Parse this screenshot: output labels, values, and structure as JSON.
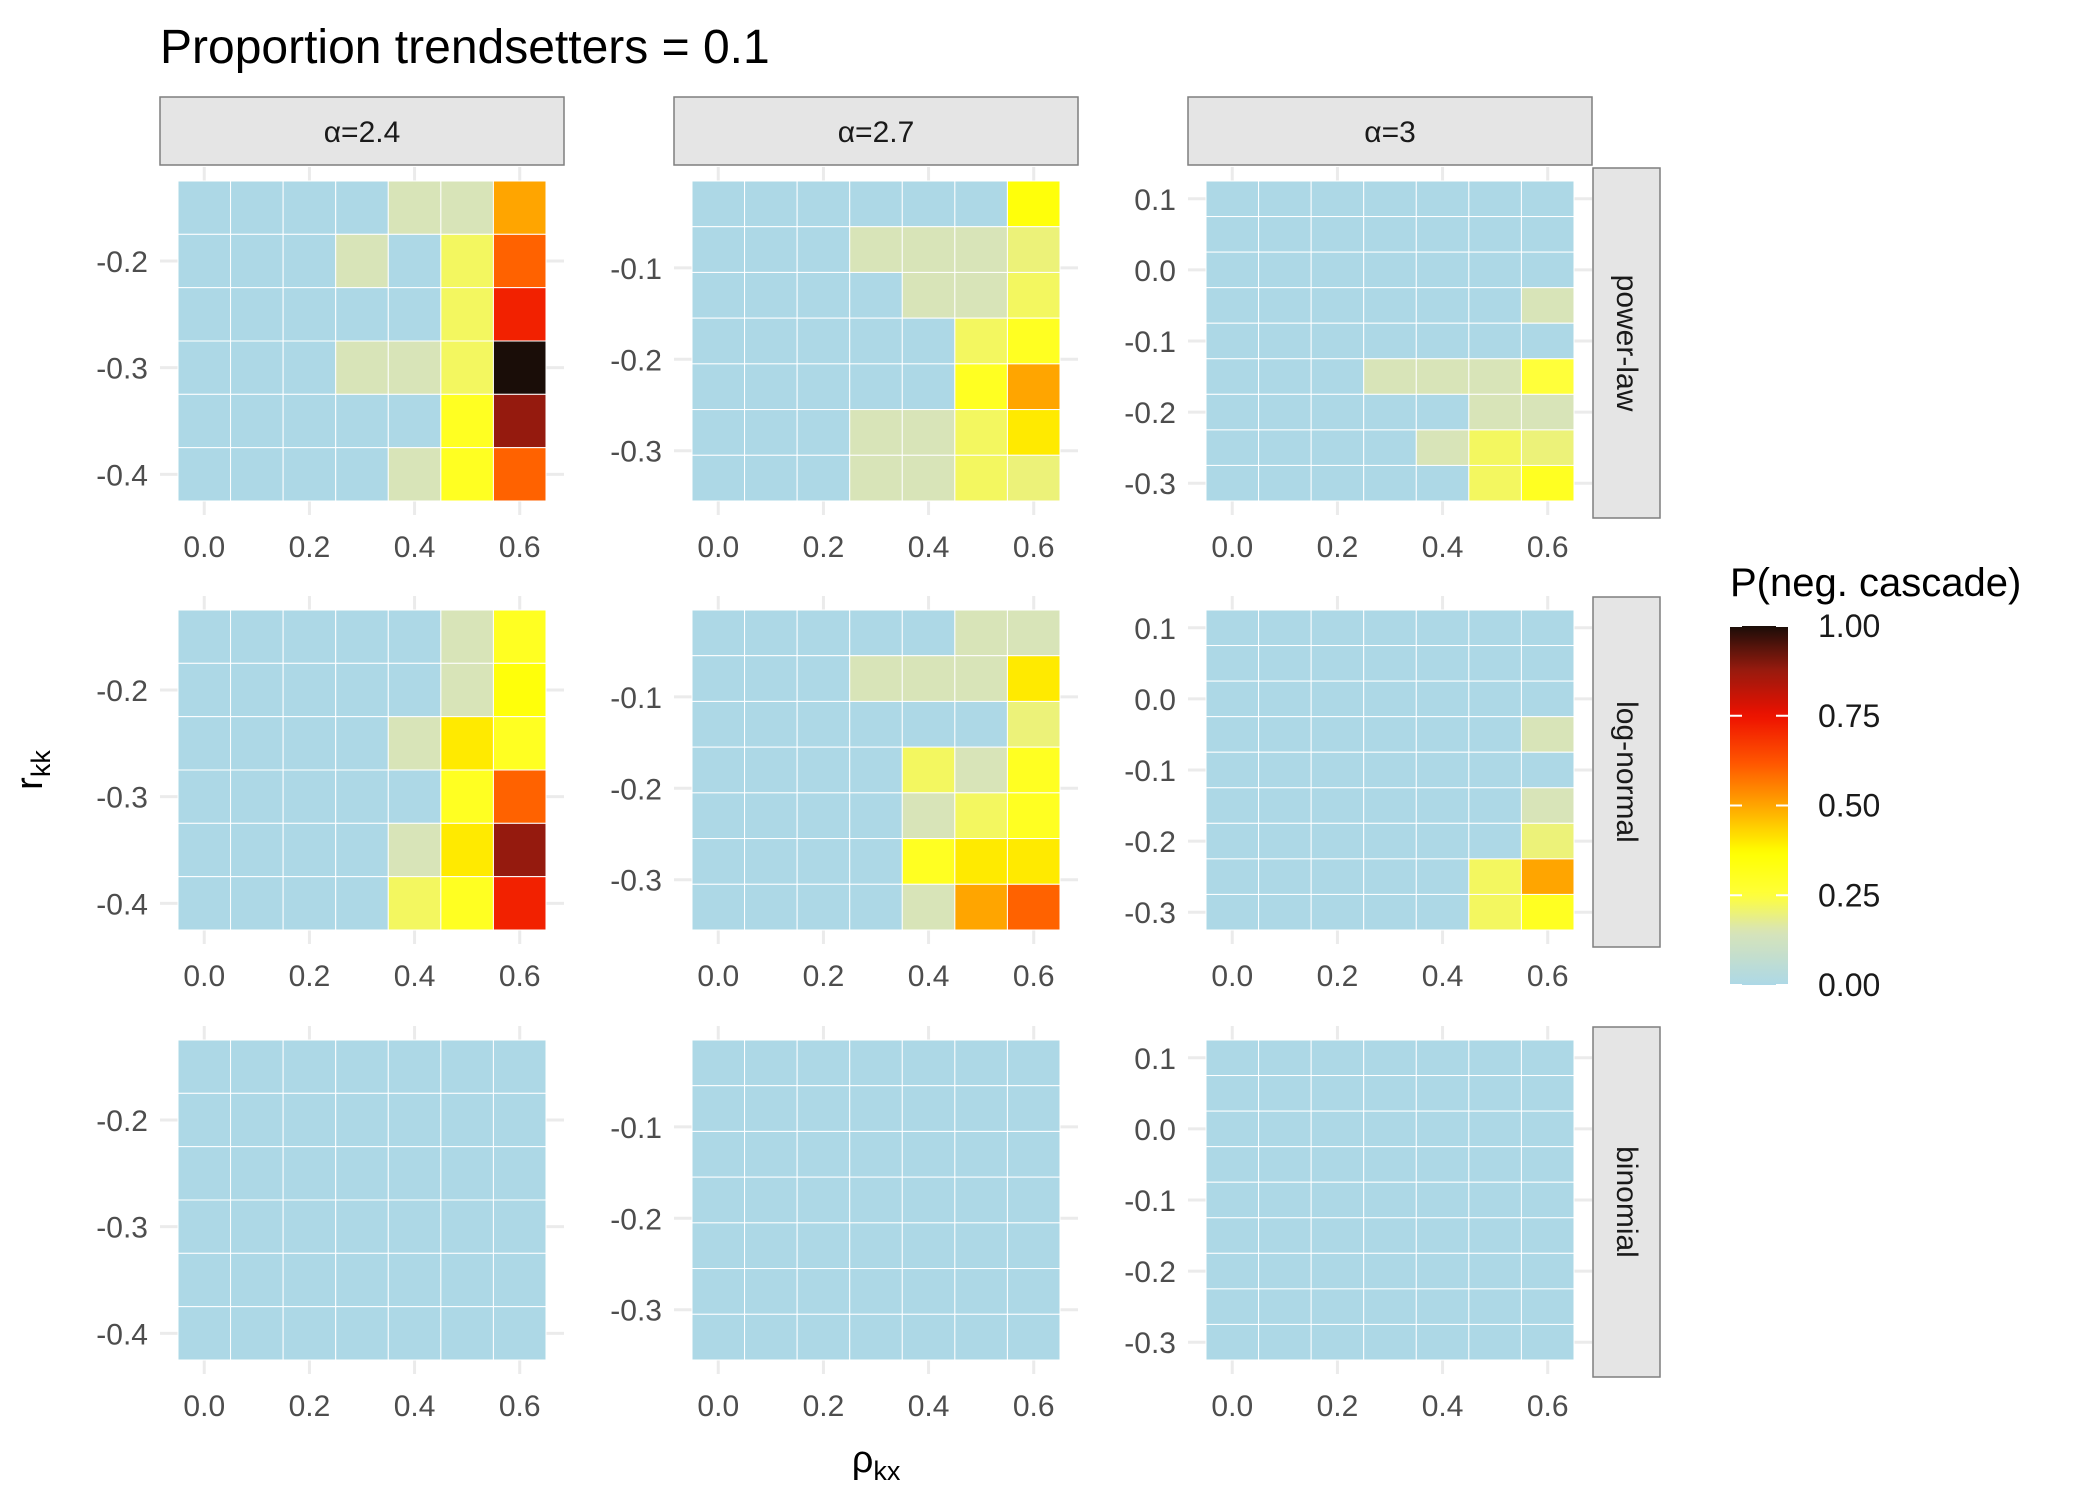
{
  "chart_data": {
    "type": "heatmap",
    "title": "Proportion trendsetters = 0.1",
    "xlabel": {
      "base": "ρ",
      "sub": "kx"
    },
    "ylabel": {
      "base": "r",
      "sub": "kk"
    },
    "x_values": [
      0.0,
      0.1,
      0.2,
      0.3,
      0.4,
      0.5,
      0.6
    ],
    "x_ticks": [
      0.0,
      0.2,
      0.4,
      0.6
    ],
    "x_tick_labels": [
      "0.0",
      "0.2",
      "0.4",
      "0.6"
    ],
    "columns": [
      {
        "label": "α=2.4",
        "y_values": [
          -0.15,
          -0.2,
          -0.25,
          -0.3,
          -0.35,
          -0.4
        ],
        "y_ticks": [
          -0.2,
          -0.3,
          -0.4
        ],
        "y_tick_labels": [
          "-0.2",
          "-0.3",
          "-0.4"
        ]
      },
      {
        "label": "α=2.7",
        "y_values": [
          -0.03,
          -0.08,
          -0.13,
          -0.18,
          -0.23,
          -0.28,
          -0.33
        ],
        "y_ticks": [
          -0.1,
          -0.2,
          -0.3
        ],
        "y_tick_labels": [
          "-0.1",
          "-0.2",
          "-0.3"
        ]
      },
      {
        "label": "α=3",
        "y_values": [
          0.1,
          0.05,
          0.0,
          -0.05,
          -0.1,
          -0.15,
          -0.2,
          -0.25,
          -0.3
        ],
        "y_ticks": [
          0.1,
          0.0,
          -0.1,
          -0.2,
          -0.3
        ],
        "y_tick_labels": [
          "0.1",
          "0.0",
          "-0.1",
          "-0.2",
          "-0.3"
        ]
      }
    ],
    "rows": [
      {
        "label": "power-law",
        "values": [
          [
            [
              0,
              0,
              0,
              0,
              0.15,
              0.15,
              0.5
            ],
            [
              0,
              0,
              0,
              0.15,
              0,
              0.22,
              0.6
            ],
            [
              0,
              0,
              0,
              0,
              0,
              0.22,
              0.72
            ],
            [
              0,
              0,
              0,
              0.15,
              0.15,
              0.22,
              1.0
            ],
            [
              0,
              0,
              0,
              0,
              0,
              0.3,
              0.88
            ],
            [
              0,
              0,
              0,
              0,
              0.15,
              0.3,
              0.6
            ]
          ],
          [
            [
              0,
              0,
              0,
              0,
              0,
              0,
              0.35
            ],
            [
              0,
              0,
              0,
              0.15,
              0.15,
              0.15,
              0.2
            ],
            [
              0,
              0,
              0,
              0,
              0.15,
              0.15,
              0.22
            ],
            [
              0,
              0,
              0,
              0,
              0,
              0.22,
              0.3
            ],
            [
              0,
              0,
              0,
              0,
              0,
              0.3,
              0.5
            ],
            [
              0,
              0,
              0,
              0.15,
              0.15,
              0.22,
              0.4
            ],
            [
              0,
              0,
              0,
              0.15,
              0.15,
              0.22,
              0.2
            ]
          ],
          [
            [
              0,
              0,
              0,
              0,
              0,
              0,
              0
            ],
            [
              0,
              0,
              0,
              0,
              0,
              0,
              0
            ],
            [
              0,
              0,
              0,
              0,
              0,
              0,
              0
            ],
            [
              0,
              0,
              0,
              0,
              0,
              0,
              0.15
            ],
            [
              0,
              0,
              0,
              0,
              0,
              0,
              0
            ],
            [
              0,
              0,
              0,
              0.15,
              0.15,
              0.15,
              0.25
            ],
            [
              0,
              0,
              0,
              0,
              0,
              0.15,
              0.15
            ],
            [
              0,
              0,
              0,
              0,
              0.15,
              0.22,
              0.2
            ],
            [
              0,
              0,
              0,
              0,
              0,
              0.22,
              0.3
            ]
          ]
        ]
      },
      {
        "label": "log-normal",
        "values": [
          [
            [
              0,
              0,
              0,
              0,
              0,
              0.15,
              0.3
            ],
            [
              0,
              0,
              0,
              0,
              0,
              0.15,
              0.35
            ],
            [
              0,
              0,
              0,
              0,
              0.15,
              0.4,
              0.3
            ],
            [
              0,
              0,
              0,
              0,
              0,
              0.3,
              0.6
            ],
            [
              0,
              0,
              0,
              0,
              0.15,
              0.4,
              0.88
            ],
            [
              0,
              0,
              0,
              0,
              0.22,
              0.3,
              0.72
            ]
          ],
          [
            [
              0,
              0,
              0,
              0,
              0,
              0.15,
              0.15
            ],
            [
              0,
              0,
              0,
              0.15,
              0.15,
              0.15,
              0.4
            ],
            [
              0,
              0,
              0,
              0,
              0,
              0,
              0.2
            ],
            [
              0,
              0,
              0,
              0,
              0.22,
              0.15,
              0.3
            ],
            [
              0,
              0,
              0,
              0,
              0.15,
              0.22,
              0.3
            ],
            [
              0,
              0,
              0,
              0,
              0.3,
              0.4,
              0.4
            ],
            [
              0,
              0,
              0,
              0,
              0.15,
              0.5,
              0.6
            ]
          ],
          [
            [
              0,
              0,
              0,
              0,
              0,
              0,
              0
            ],
            [
              0,
              0,
              0,
              0,
              0,
              0,
              0
            ],
            [
              0,
              0,
              0,
              0,
              0,
              0,
              0
            ],
            [
              0,
              0,
              0,
              0,
              0,
              0,
              0.15
            ],
            [
              0,
              0,
              0,
              0,
              0,
              0,
              0
            ],
            [
              0,
              0,
              0,
              0,
              0,
              0,
              0.15
            ],
            [
              0,
              0,
              0,
              0,
              0,
              0,
              0.2
            ],
            [
              0,
              0,
              0,
              0,
              0,
              0.22,
              0.5
            ],
            [
              0,
              0,
              0,
              0,
              0,
              0.22,
              0.3
            ]
          ]
        ]
      },
      {
        "label": "binomial",
        "values": [
          [
            [
              0,
              0,
              0,
              0,
              0,
              0,
              0
            ],
            [
              0,
              0,
              0,
              0,
              0,
              0,
              0
            ],
            [
              0,
              0,
              0,
              0,
              0,
              0,
              0
            ],
            [
              0,
              0,
              0,
              0,
              0,
              0,
              0
            ],
            [
              0,
              0,
              0,
              0,
              0,
              0,
              0
            ],
            [
              0,
              0,
              0,
              0,
              0,
              0,
              0
            ]
          ],
          [
            [
              0,
              0,
              0,
              0,
              0,
              0,
              0
            ],
            [
              0,
              0,
              0,
              0,
              0,
              0,
              0
            ],
            [
              0,
              0,
              0,
              0,
              0,
              0,
              0
            ],
            [
              0,
              0,
              0,
              0,
              0,
              0,
              0
            ],
            [
              0,
              0,
              0,
              0,
              0,
              0,
              0
            ],
            [
              0,
              0,
              0,
              0,
              0,
              0,
              0
            ],
            [
              0,
              0,
              0,
              0,
              0,
              0,
              0
            ]
          ],
          [
            [
              0,
              0,
              0,
              0,
              0,
              0,
              0
            ],
            [
              0,
              0,
              0,
              0,
              0,
              0,
              0
            ],
            [
              0,
              0,
              0,
              0,
              0,
              0,
              0
            ],
            [
              0,
              0,
              0,
              0,
              0,
              0,
              0
            ],
            [
              0,
              0,
              0,
              0,
              0,
              0,
              0
            ],
            [
              0,
              0,
              0,
              0,
              0,
              0,
              0
            ],
            [
              0,
              0,
              0,
              0,
              0,
              0,
              0
            ],
            [
              0,
              0,
              0,
              0,
              0,
              0,
              0
            ],
            [
              0,
              0,
              0,
              0,
              0,
              0,
              0
            ]
          ]
        ]
      }
    ],
    "legend": {
      "title": "P(neg. cascade)",
      "placement": "right",
      "ticks": [
        1.0,
        0.75,
        0.5,
        0.25,
        0.0
      ],
      "tick_labels": [
        "1.00",
        "0.75",
        "0.50",
        "0.25",
        "0.00"
      ],
      "range": [
        0,
        1
      ]
    },
    "color_scale": [
      {
        "value": 0.0,
        "color": "#add8e6"
      },
      {
        "value": 0.15,
        "color": "#d8e4b8"
      },
      {
        "value": 0.25,
        "color": "#ffff3a"
      },
      {
        "value": 0.37,
        "color": "#ffff00"
      },
      {
        "value": 0.5,
        "color": "#ffa500"
      },
      {
        "value": 0.62,
        "color": "#ff5500"
      },
      {
        "value": 0.75,
        "color": "#ee1100"
      },
      {
        "value": 0.88,
        "color": "#951a0e"
      },
      {
        "value": 1.0,
        "color": "#1a0d08"
      }
    ],
    "grid": true
  }
}
